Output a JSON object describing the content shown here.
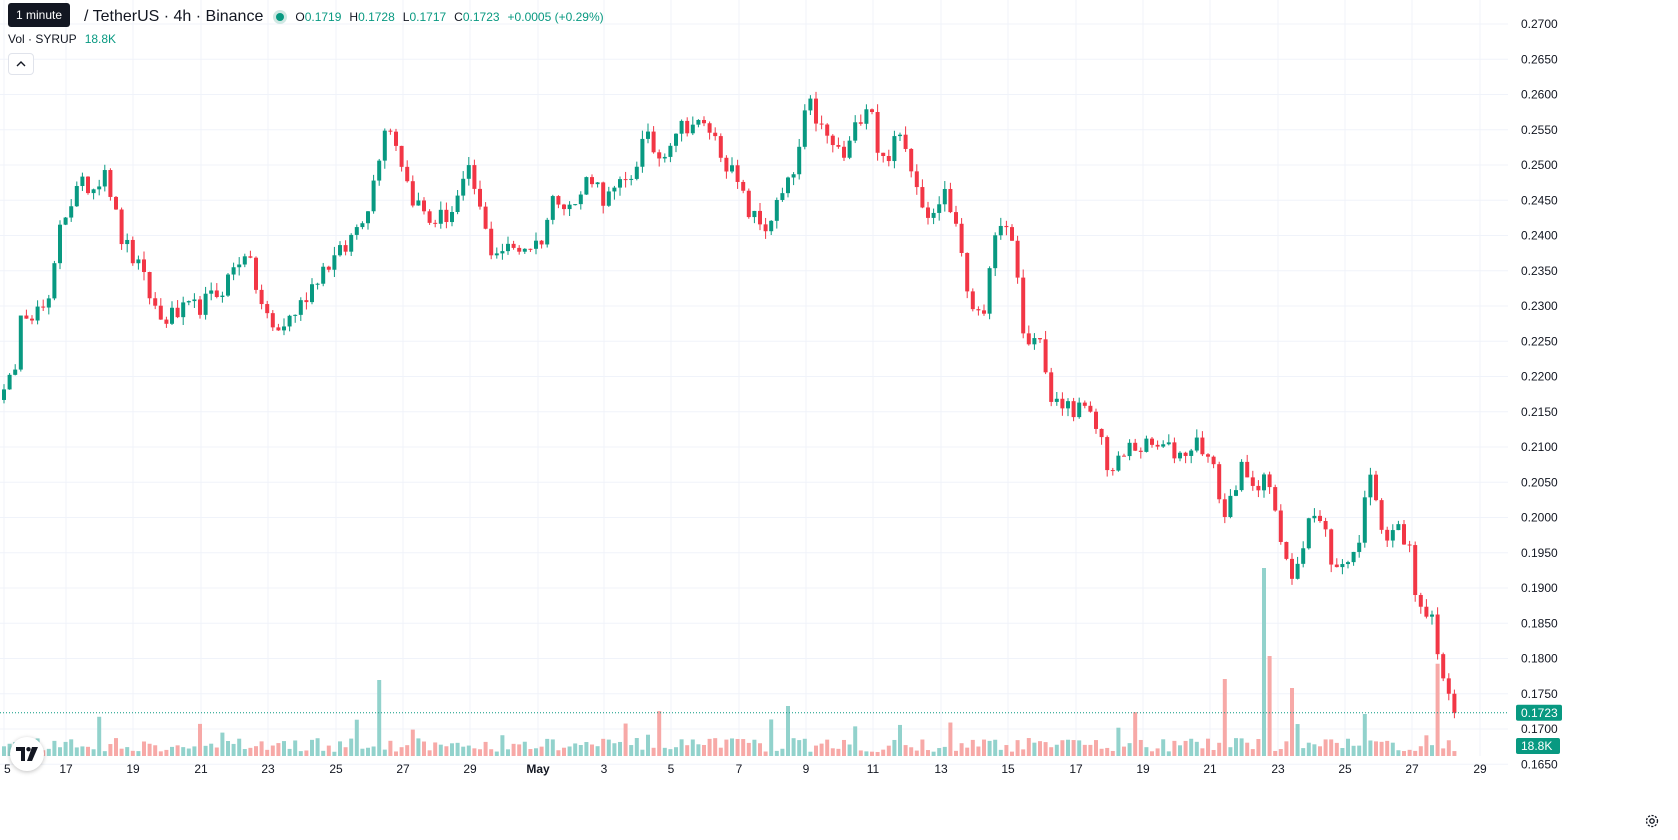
{
  "tooltip": "1 minute",
  "symbol_text": "/ TetherUS · 4h · Binance",
  "ohlc": {
    "o_label": "O",
    "o_value": "0.1719",
    "h_label": "H",
    "h_value": "0.1728",
    "l_label": "L",
    "l_value": "0.1717",
    "c_label": "C",
    "c_value": "0.1723",
    "change": "+0.0005 (+0.29%)"
  },
  "volume_legend": {
    "label": "Vol · SYRUP",
    "value": "18.8K"
  },
  "icons": {
    "collapse": "chevron-up-icon",
    "logo": "tradingview-logo",
    "settings": "gear-icon"
  },
  "colors": {
    "up": "#089981",
    "down": "#f23645",
    "volume_up": "#92d2cc",
    "volume_down": "#f7a9a7",
    "grid": "#f0f3fa"
  },
  "chart_data": {
    "type": "candlestick",
    "interval": "4h",
    "exchange": "Binance",
    "y_axis": {
      "ticks": [
        "0.2700",
        "0.2650",
        "0.2600",
        "0.2550",
        "0.2500",
        "0.2450",
        "0.2400",
        "0.2350",
        "0.2300",
        "0.2250",
        "0.2200",
        "0.2150",
        "0.2100",
        "0.2050",
        "0.2000",
        "0.1950",
        "0.1900",
        "0.1850",
        "0.1800",
        "0.1750",
        "0.1700",
        "0.1650"
      ],
      "range": [
        0.1615,
        0.2715
      ]
    },
    "x_axis": {
      "ticks": [
        "5",
        "17",
        "19",
        "21",
        "23",
        "25",
        "27",
        "29",
        "May",
        "3",
        "5",
        "7",
        "9",
        "11",
        "13",
        "15",
        "17",
        "19",
        "21",
        "23",
        "25",
        "27",
        "29"
      ],
      "bold_ticks": [
        "May"
      ]
    },
    "last_price": "0.1723",
    "last_volume": "18.8K",
    "price_anchors": [
      [
        15,
        0.2193
      ],
      [
        20,
        0.23
      ],
      [
        35,
        0.229
      ],
      [
        50,
        0.23
      ],
      [
        60,
        0.242
      ],
      [
        80,
        0.247
      ],
      [
        95,
        0.247
      ],
      [
        105,
        0.25
      ],
      [
        120,
        0.24
      ],
      [
        140,
        0.235
      ],
      [
        160,
        0.228
      ],
      [
        180,
        0.229
      ],
      [
        200,
        0.23
      ],
      [
        220,
        0.232
      ],
      [
        245,
        0.238
      ],
      [
        262,
        0.23
      ],
      [
        275,
        0.226
      ],
      [
        300,
        0.23
      ],
      [
        320,
        0.235
      ],
      [
        345,
        0.238
      ],
      [
        370,
        0.245
      ],
      [
        385,
        0.256
      ],
      [
        395,
        0.254
      ],
      [
        410,
        0.246
      ],
      [
        430,
        0.242
      ],
      [
        450,
        0.243
      ],
      [
        470,
        0.249
      ],
      [
        490,
        0.238
      ],
      [
        510,
        0.238
      ],
      [
        540,
        0.239
      ],
      [
        555,
        0.246
      ],
      [
        575,
        0.244
      ],
      [
        590,
        0.249
      ],
      [
        605,
        0.245
      ],
      [
        630,
        0.248
      ],
      [
        645,
        0.254
      ],
      [
        660,
        0.251
      ],
      [
        675,
        0.255
      ],
      [
        690,
        0.256
      ],
      [
        710,
        0.255
      ],
      [
        735,
        0.248
      ],
      [
        750,
        0.243
      ],
      [
        765,
        0.241
      ],
      [
        780,
        0.245
      ],
      [
        795,
        0.249
      ],
      [
        808,
        0.259
      ],
      [
        825,
        0.254
      ],
      [
        845,
        0.251
      ],
      [
        860,
        0.257
      ],
      [
        870,
        0.26
      ],
      [
        880,
        0.25
      ],
      [
        900,
        0.254
      ],
      [
        915,
        0.249
      ],
      [
        925,
        0.243
      ],
      [
        945,
        0.246
      ],
      [
        960,
        0.24
      ],
      [
        968,
        0.23
      ],
      [
        985,
        0.23
      ],
      [
        1000,
        0.243
      ],
      [
        1015,
        0.237
      ],
      [
        1025,
        0.224
      ],
      [
        1040,
        0.226
      ],
      [
        1050,
        0.216
      ],
      [
        1065,
        0.216
      ],
      [
        1085,
        0.215
      ],
      [
        1100,
        0.212
      ],
      [
        1110,
        0.206
      ],
      [
        1130,
        0.21
      ],
      [
        1160,
        0.21
      ],
      [
        1180,
        0.209
      ],
      [
        1200,
        0.211
      ],
      [
        1215,
        0.206
      ],
      [
        1225,
        0.2
      ],
      [
        1240,
        0.207
      ],
      [
        1255,
        0.203
      ],
      [
        1265,
        0.208
      ],
      [
        1275,
        0.2
      ],
      [
        1290,
        0.191
      ],
      [
        1300,
        0.195
      ],
      [
        1310,
        0.201
      ],
      [
        1325,
        0.198
      ],
      [
        1335,
        0.192
      ],
      [
        1350,
        0.195
      ],
      [
        1360,
        0.196
      ],
      [
        1366,
        0.206
      ],
      [
        1375,
        0.204
      ],
      [
        1385,
        0.197
      ],
      [
        1395,
        0.199
      ],
      [
        1410,
        0.195
      ],
      [
        1420,
        0.186
      ],
      [
        1430,
        0.187
      ],
      [
        1440,
        0.179
      ],
      [
        1450,
        0.173
      ],
      [
        1458,
        0.1723
      ]
    ],
    "volume_peaks": [
      [
        380,
        "up",
        76
      ],
      [
        788,
        "up",
        50
      ],
      [
        1222,
        "down",
        77
      ],
      [
        1262,
        "up",
        188
      ],
      [
        1268,
        "down",
        100
      ],
      [
        1290,
        "down",
        68
      ],
      [
        1440,
        "down",
        68
      ],
      [
        1435,
        "down",
        52
      ],
      [
        1365,
        "up",
        42
      ]
    ]
  }
}
